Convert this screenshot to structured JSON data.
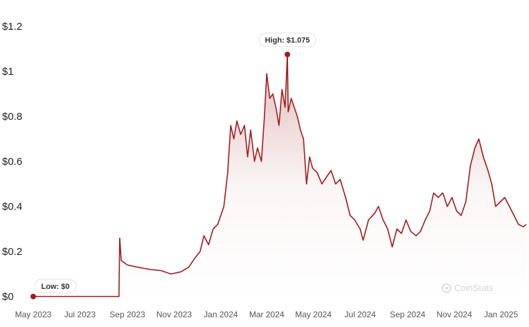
{
  "chart_data": {
    "type": "area",
    "y_axis": {
      "ticks": [
        "$0",
        "$0.2",
        "$0.4",
        "$0.6",
        "$0.8",
        "$1",
        "$1.2"
      ],
      "ylim": [
        0,
        1.2
      ]
    },
    "x_axis": {
      "ticks": [
        "May 2023",
        "Jul 2023",
        "Sep 2023",
        "Nov 2023",
        "Jan 2024",
        "Mar 2024",
        "May 2024",
        "Jul 2024",
        "Sep 2024",
        "Nov 2024",
        "Jan 2025"
      ]
    },
    "series": [
      {
        "color": "#a01c1c",
        "points": [
          [
            "2023-05-01",
            0
          ],
          [
            "2023-08-21",
            0
          ],
          [
            "2023-08-22",
            0.26
          ],
          [
            "2023-08-24",
            0.16
          ],
          [
            "2023-09-01",
            0.14
          ],
          [
            "2023-09-15",
            0.13
          ],
          [
            "2023-10-01",
            0.12
          ],
          [
            "2023-10-15",
            0.115
          ],
          [
            "2023-10-28",
            0.1
          ],
          [
            "2023-11-10",
            0.11
          ],
          [
            "2023-11-20",
            0.13
          ],
          [
            "2023-11-28",
            0.17
          ],
          [
            "2023-12-05",
            0.2
          ],
          [
            "2023-12-10",
            0.27
          ],
          [
            "2023-12-16",
            0.23
          ],
          [
            "2023-12-22",
            0.3
          ],
          [
            "2023-12-28",
            0.32
          ],
          [
            "2024-01-05",
            0.4
          ],
          [
            "2024-01-10",
            0.55
          ],
          [
            "2024-01-14",
            0.76
          ],
          [
            "2024-01-18",
            0.7
          ],
          [
            "2024-01-22",
            0.78
          ],
          [
            "2024-01-27",
            0.72
          ],
          [
            "2024-02-01",
            0.76
          ],
          [
            "2024-02-05",
            0.62
          ],
          [
            "2024-02-09",
            0.74
          ],
          [
            "2024-02-14",
            0.6
          ],
          [
            "2024-02-18",
            0.66
          ],
          [
            "2024-02-23",
            0.6
          ],
          [
            "2024-02-27",
            0.8
          ],
          [
            "2024-03-01",
            0.99
          ],
          [
            "2024-03-05",
            0.88
          ],
          [
            "2024-03-09",
            0.9
          ],
          [
            "2024-03-13",
            0.84
          ],
          [
            "2024-03-17",
            0.76
          ],
          [
            "2024-03-21",
            0.92
          ],
          [
            "2024-03-25",
            0.84
          ],
          [
            "2024-03-28",
            1.075
          ],
          [
            "2024-03-29",
            0.82
          ],
          [
            "2024-04-02",
            0.88
          ],
          [
            "2024-04-06",
            0.84
          ],
          [
            "2024-04-10",
            0.8
          ],
          [
            "2024-04-14",
            0.74
          ],
          [
            "2024-04-18",
            0.7
          ],
          [
            "2024-04-22",
            0.5
          ],
          [
            "2024-04-26",
            0.62
          ],
          [
            "2024-04-30",
            0.57
          ],
          [
            "2024-05-06",
            0.55
          ],
          [
            "2024-05-12",
            0.5
          ],
          [
            "2024-05-18",
            0.53
          ],
          [
            "2024-05-24",
            0.56
          ],
          [
            "2024-05-30",
            0.5
          ],
          [
            "2024-06-05",
            0.52
          ],
          [
            "2024-06-12",
            0.44
          ],
          [
            "2024-06-18",
            0.36
          ],
          [
            "2024-06-24",
            0.34
          ],
          [
            "2024-07-01",
            0.3
          ],
          [
            "2024-07-05",
            0.25
          ],
          [
            "2024-07-12",
            0.34
          ],
          [
            "2024-07-20",
            0.37
          ],
          [
            "2024-07-25",
            0.4
          ],
          [
            "2024-07-31",
            0.34
          ],
          [
            "2024-08-06",
            0.3
          ],
          [
            "2024-08-12",
            0.22
          ],
          [
            "2024-08-18",
            0.3
          ],
          [
            "2024-08-24",
            0.28
          ],
          [
            "2024-08-30",
            0.34
          ],
          [
            "2024-09-05",
            0.29
          ],
          [
            "2024-09-12",
            0.27
          ],
          [
            "2024-09-18",
            0.29
          ],
          [
            "2024-09-24",
            0.34
          ],
          [
            "2024-09-30",
            0.38
          ],
          [
            "2024-10-05",
            0.46
          ],
          [
            "2024-10-11",
            0.44
          ],
          [
            "2024-10-17",
            0.46
          ],
          [
            "2024-10-23",
            0.4
          ],
          [
            "2024-10-29",
            0.44
          ],
          [
            "2024-11-04",
            0.38
          ],
          [
            "2024-11-10",
            0.36
          ],
          [
            "2024-11-16",
            0.42
          ],
          [
            "2024-11-22",
            0.58
          ],
          [
            "2024-11-28",
            0.66
          ],
          [
            "2024-12-03",
            0.7
          ],
          [
            "2024-12-09",
            0.62
          ],
          [
            "2024-12-15",
            0.56
          ],
          [
            "2024-12-20",
            0.5
          ],
          [
            "2024-12-25",
            0.4
          ],
          [
            "2024-12-31",
            0.42
          ],
          [
            "2025-01-06",
            0.44
          ],
          [
            "2025-01-12",
            0.4
          ],
          [
            "2025-01-18",
            0.36
          ],
          [
            "2025-01-24",
            0.32
          ],
          [
            "2025-01-30",
            0.31
          ],
          [
            "2025-02-03",
            0.32
          ]
        ]
      }
    ],
    "annotations": {
      "high": {
        "label": "High: $1.075",
        "date": "2024-03-28",
        "value": 1.075
      },
      "low": {
        "label": "Low: $0",
        "date": "2023-05-01",
        "value": 0
      }
    },
    "grid": false,
    "watermark": "CoinStats"
  }
}
